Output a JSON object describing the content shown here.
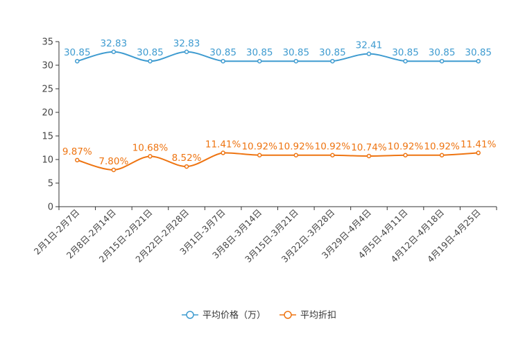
{
  "chart_data": {
    "type": "line",
    "title": "",
    "xlabel": "",
    "ylabel": "",
    "ylim": [
      0,
      35
    ],
    "yticks": [
      0,
      5,
      10,
      15,
      20,
      25,
      30,
      35
    ],
    "grid": false,
    "legend_position": "bottom-center",
    "categories": [
      "2月1日-2月7日",
      "2月8日-2月14日",
      "2月15日-2月21日",
      "2月22日-2月28日",
      "3月1日-3月7日",
      "3月8日-3月14日",
      "3月15日-3月21日",
      "3月22日-3月28日",
      "3月29日-4月4日",
      "4月5日-4月11日",
      "4月12日-4月18日",
      "4月19日-4月25日"
    ],
    "series": [
      {
        "name": "平均价格（万）",
        "color": "#3e9bd0",
        "values": [
          30.85,
          32.83,
          30.85,
          32.83,
          30.85,
          30.85,
          30.85,
          30.85,
          32.41,
          30.85,
          30.85,
          30.85
        ],
        "labels": [
          "30.85",
          "32.83",
          "30.85",
          "32.83",
          "30.85",
          "30.85",
          "30.85",
          "30.85",
          "32.41",
          "30.85",
          "30.85",
          "30.85"
        ]
      },
      {
        "name": "平均折扣",
        "color": "#ee7411",
        "values": [
          9.87,
          7.8,
          10.68,
          8.52,
          11.41,
          10.92,
          10.92,
          10.92,
          10.74,
          10.92,
          10.92,
          11.41
        ],
        "labels": [
          "9.87%",
          "7.80%",
          "10.68%",
          "8.52%",
          "11.41%",
          "10.92%",
          "10.92%",
          "10.92%",
          "10.74%",
          "10.92%",
          "10.92%",
          "11.41%"
        ]
      }
    ]
  }
}
